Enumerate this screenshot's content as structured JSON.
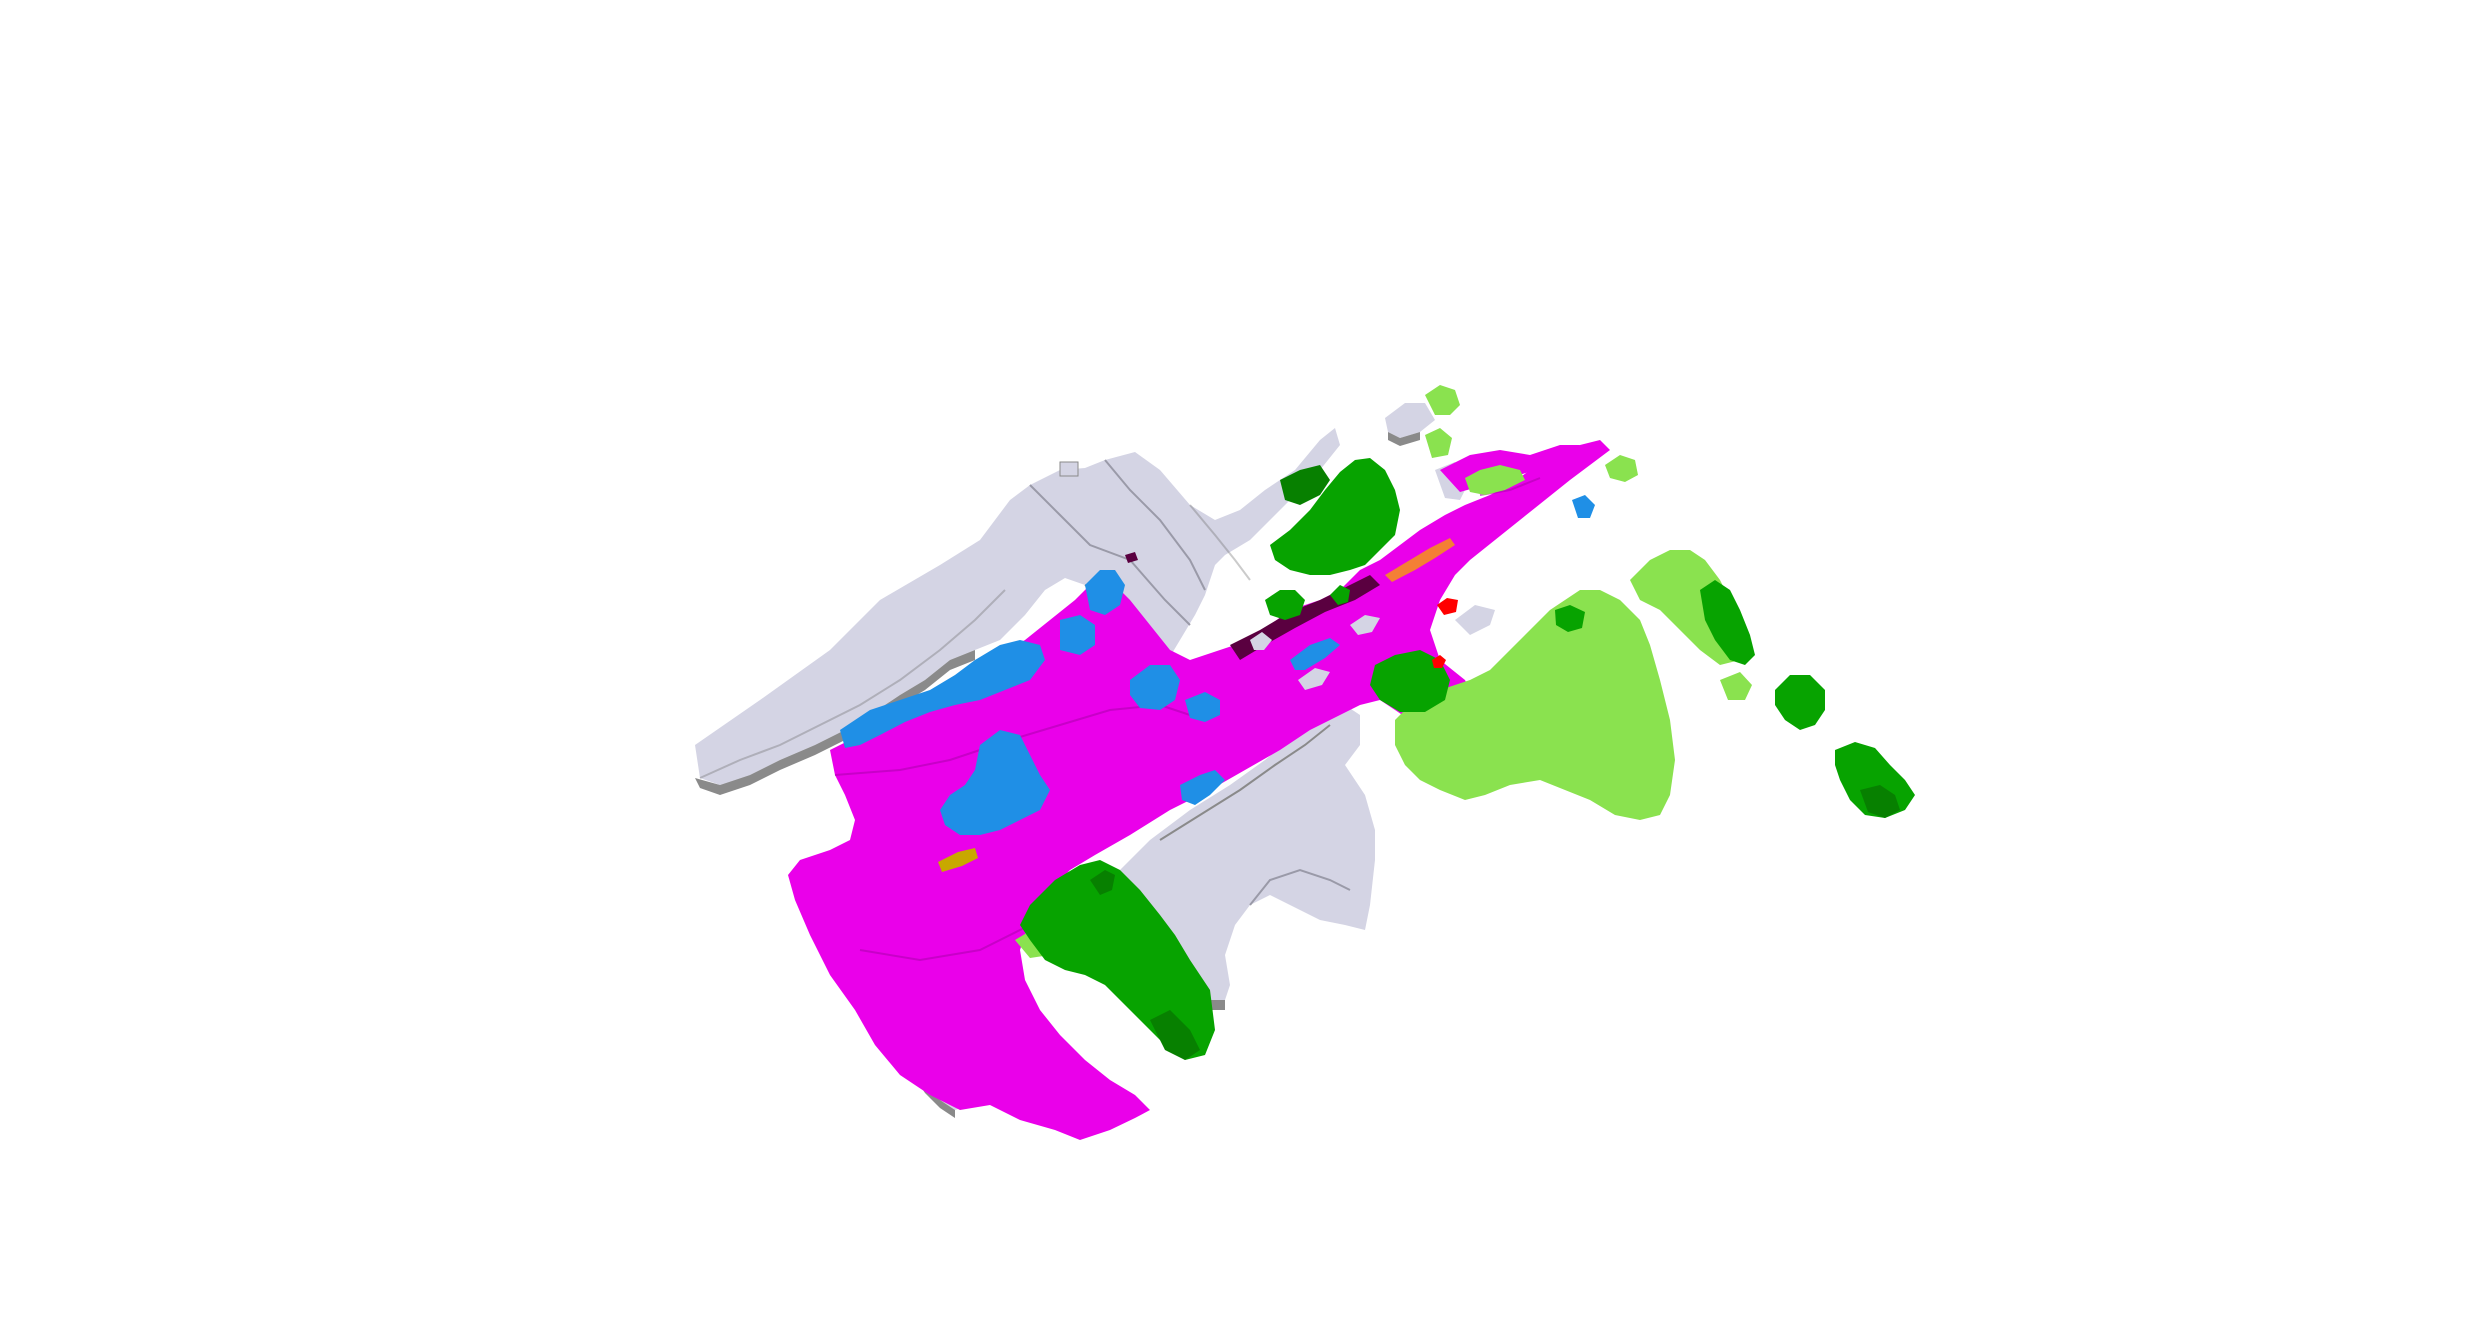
{
  "scene": {
    "background": "#ffffff",
    "palette": {
      "building": "#d4d4e4",
      "road": "#ea00ea",
      "water": "#1f8fe6",
      "tree": "#07a300",
      "grass": "#8ae24f",
      "car": "#ff0000",
      "truck": "#f47f35",
      "other_vehicle": "#c8a800",
      "dark_structure": "#5a0040",
      "edge_shade": "#6b6b6b"
    },
    "legend_visible": false,
    "text_visible": false
  }
}
